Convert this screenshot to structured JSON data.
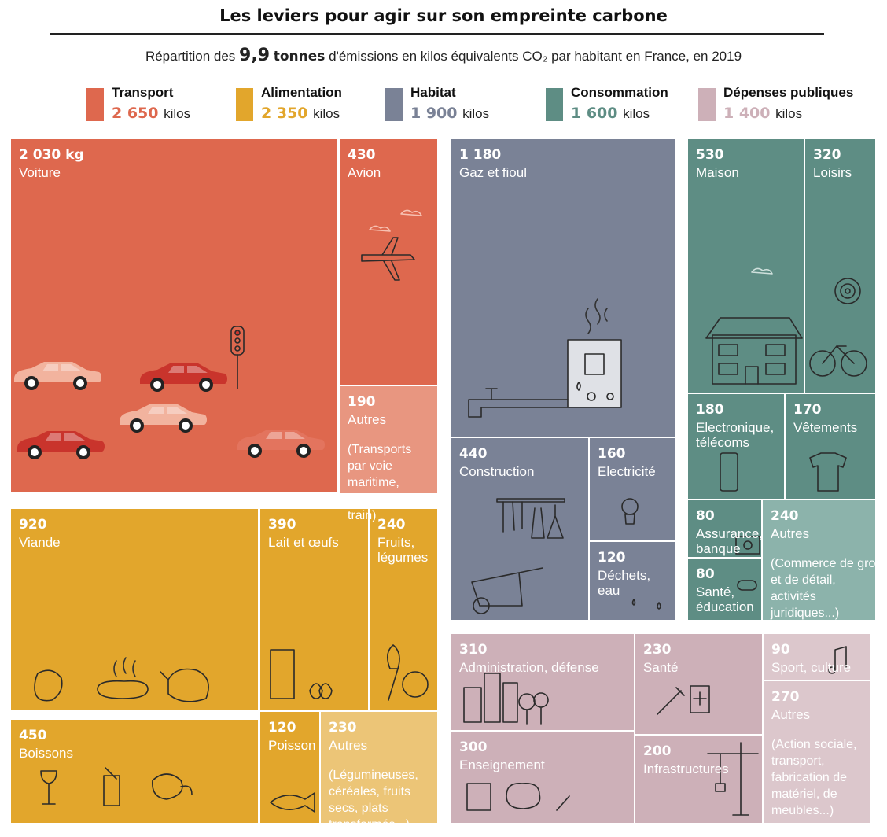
{
  "title": "Les leviers pour agir sur son empreinte carbone",
  "subtitle": {
    "prefix": "Répartition des",
    "amount": "9,9",
    "unit": "tonnes",
    "suffix": "d'émissions en kilos équivalents CO₂ par habitant en France, en 2019"
  },
  "chart_data": {
    "type": "treemap",
    "title": "Les leviers pour agir sur son empreinte carbone",
    "subtitle": "Répartition des 9,9 tonnes d'émissions en kilos équivalents CO₂ par habitant en France, en 2019",
    "categories": [
      {
        "name": "Transport",
        "total": 2650,
        "value_label": "2 650",
        "unit": "kilos",
        "color": "#de684e",
        "items": [
          {
            "value": 2030,
            "value_label": "2 030 kg",
            "label": "Voiture"
          },
          {
            "value": 430,
            "value_label": "430",
            "label": "Avion"
          },
          {
            "value": 190,
            "value_label": "190",
            "label": "Autres",
            "note": "(Transports par voie maritime, fluviale, train)"
          }
        ]
      },
      {
        "name": "Alimentation",
        "total": 2350,
        "value_label": "2 350",
        "unit": "kilos",
        "color": "#e2a62c",
        "items": [
          {
            "value": 920,
            "value_label": "920",
            "label": "Viande"
          },
          {
            "value": 390,
            "value_label": "390",
            "label": "Lait et œufs"
          },
          {
            "value": 240,
            "value_label": "240",
            "label": "Fruits, légumes"
          },
          {
            "value": 450,
            "value_label": "450",
            "label": "Boissons"
          },
          {
            "value": 120,
            "value_label": "120",
            "label": "Poisson"
          },
          {
            "value": 230,
            "value_label": "230",
            "label": "Autres",
            "note": "(Légumineuses, céréales, fruits secs, plats transformés...)"
          }
        ]
      },
      {
        "name": "Habitat",
        "total": 1900,
        "value_label": "1 900",
        "unit": "kilos",
        "color": "#7a8296",
        "items": [
          {
            "value": 1180,
            "value_label": "1 180",
            "label": "Gaz et fioul"
          },
          {
            "value": 440,
            "value_label": "440",
            "label": "Construction"
          },
          {
            "value": 160,
            "value_label": "160",
            "label": "Electricité"
          },
          {
            "value": 120,
            "value_label": "120",
            "label": "Déchets, eau"
          }
        ]
      },
      {
        "name": "Consommation",
        "total": 1600,
        "value_label": "1 600",
        "unit": "kilos",
        "color": "#5e8d84",
        "items": [
          {
            "value": 530,
            "value_label": "530",
            "label": "Maison"
          },
          {
            "value": 320,
            "value_label": "320",
            "label": "Loisirs"
          },
          {
            "value": 180,
            "value_label": "180",
            "label": "Electronique, télécoms"
          },
          {
            "value": 170,
            "value_label": "170",
            "label": "Vêtements"
          },
          {
            "value": 80,
            "value_label": "80",
            "label": "Assurance, banque"
          },
          {
            "value": 80,
            "value_label": "80",
            "label": "Santé, éducation"
          },
          {
            "value": 240,
            "value_label": "240",
            "label": "Autres",
            "note": "(Commerce de gros et de détail, activités juridiques...)"
          }
        ]
      },
      {
        "name": "Dépenses publiques",
        "total": 1400,
        "value_label": "1 400",
        "unit": "kilos",
        "color": "#cdb0b8",
        "items": [
          {
            "value": 310,
            "value_label": "310",
            "label": "Administration, défense"
          },
          {
            "value": 230,
            "value_label": "230",
            "label": "Santé"
          },
          {
            "value": 90,
            "value_label": "90",
            "label": "Sport, culture"
          },
          {
            "value": 300,
            "value_label": "300",
            "label": "Enseignement"
          },
          {
            "value": 200,
            "value_label": "200",
            "label": "Infrastructures"
          },
          {
            "value": 270,
            "value_label": "270",
            "label": "Autres",
            "note": "(Action sociale, transport, fabrication de matériel, de meubles...)"
          }
        ]
      }
    ]
  }
}
